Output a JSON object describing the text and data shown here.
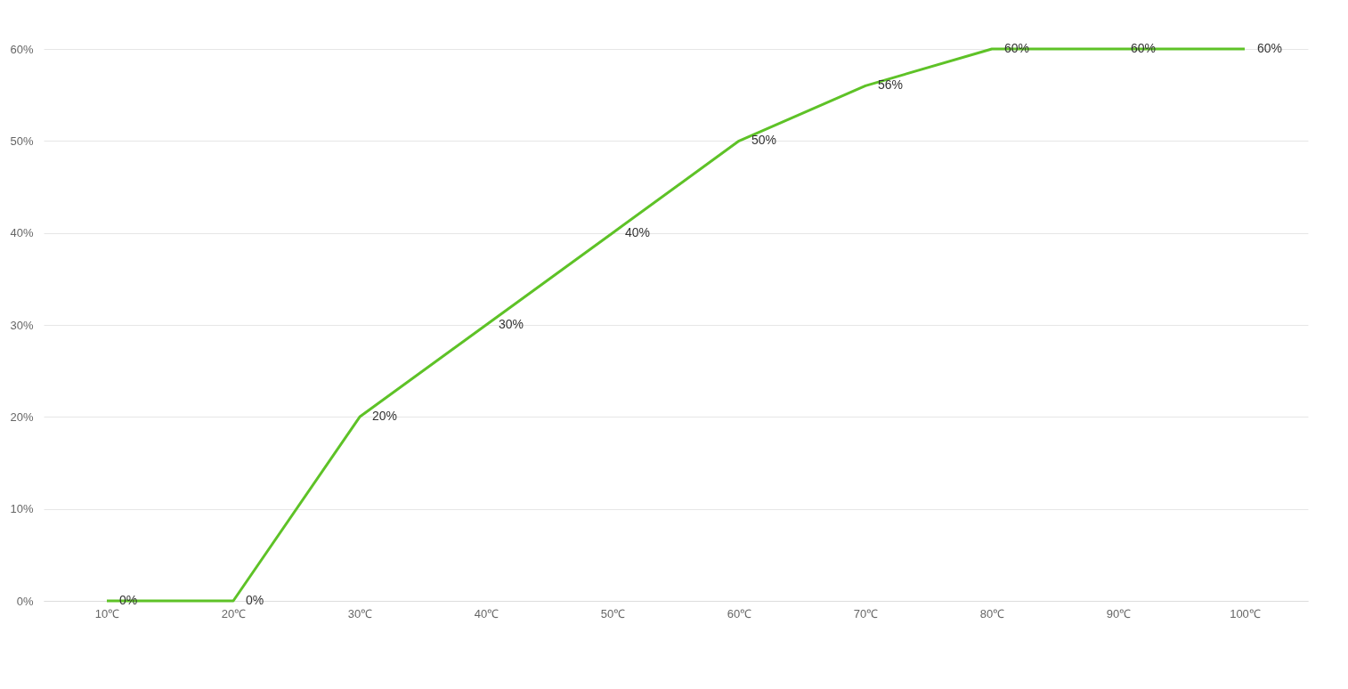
{
  "chart_data": {
    "type": "line",
    "categories": [
      "10℃",
      "20℃",
      "30℃",
      "40℃",
      "50℃",
      "60℃",
      "70℃",
      "80℃",
      "90℃",
      "100℃"
    ],
    "series": [
      {
        "color": "#5ec227",
        "values": [
          0,
          0,
          20,
          30,
          40,
          50,
          56,
          60,
          60,
          60
        ],
        "value_labels": [
          "0%",
          "0%",
          "20%",
          "30%",
          "40%",
          "50%",
          "56%",
          "60%",
          "60%",
          "60%"
        ]
      }
    ],
    "ylim": [
      0,
      60
    ],
    "yticks": [
      {
        "value": 0,
        "label": "0%"
      },
      {
        "value": 10,
        "label": "10%"
      },
      {
        "value": 20,
        "label": "20%"
      },
      {
        "value": 30,
        "label": "30%"
      },
      {
        "value": 40,
        "label": "40%"
      },
      {
        "value": 50,
        "label": "50%"
      },
      {
        "value": 60,
        "label": "60%"
      }
    ],
    "grid": "y",
    "marker": "none",
    "line_style": "solid"
  }
}
